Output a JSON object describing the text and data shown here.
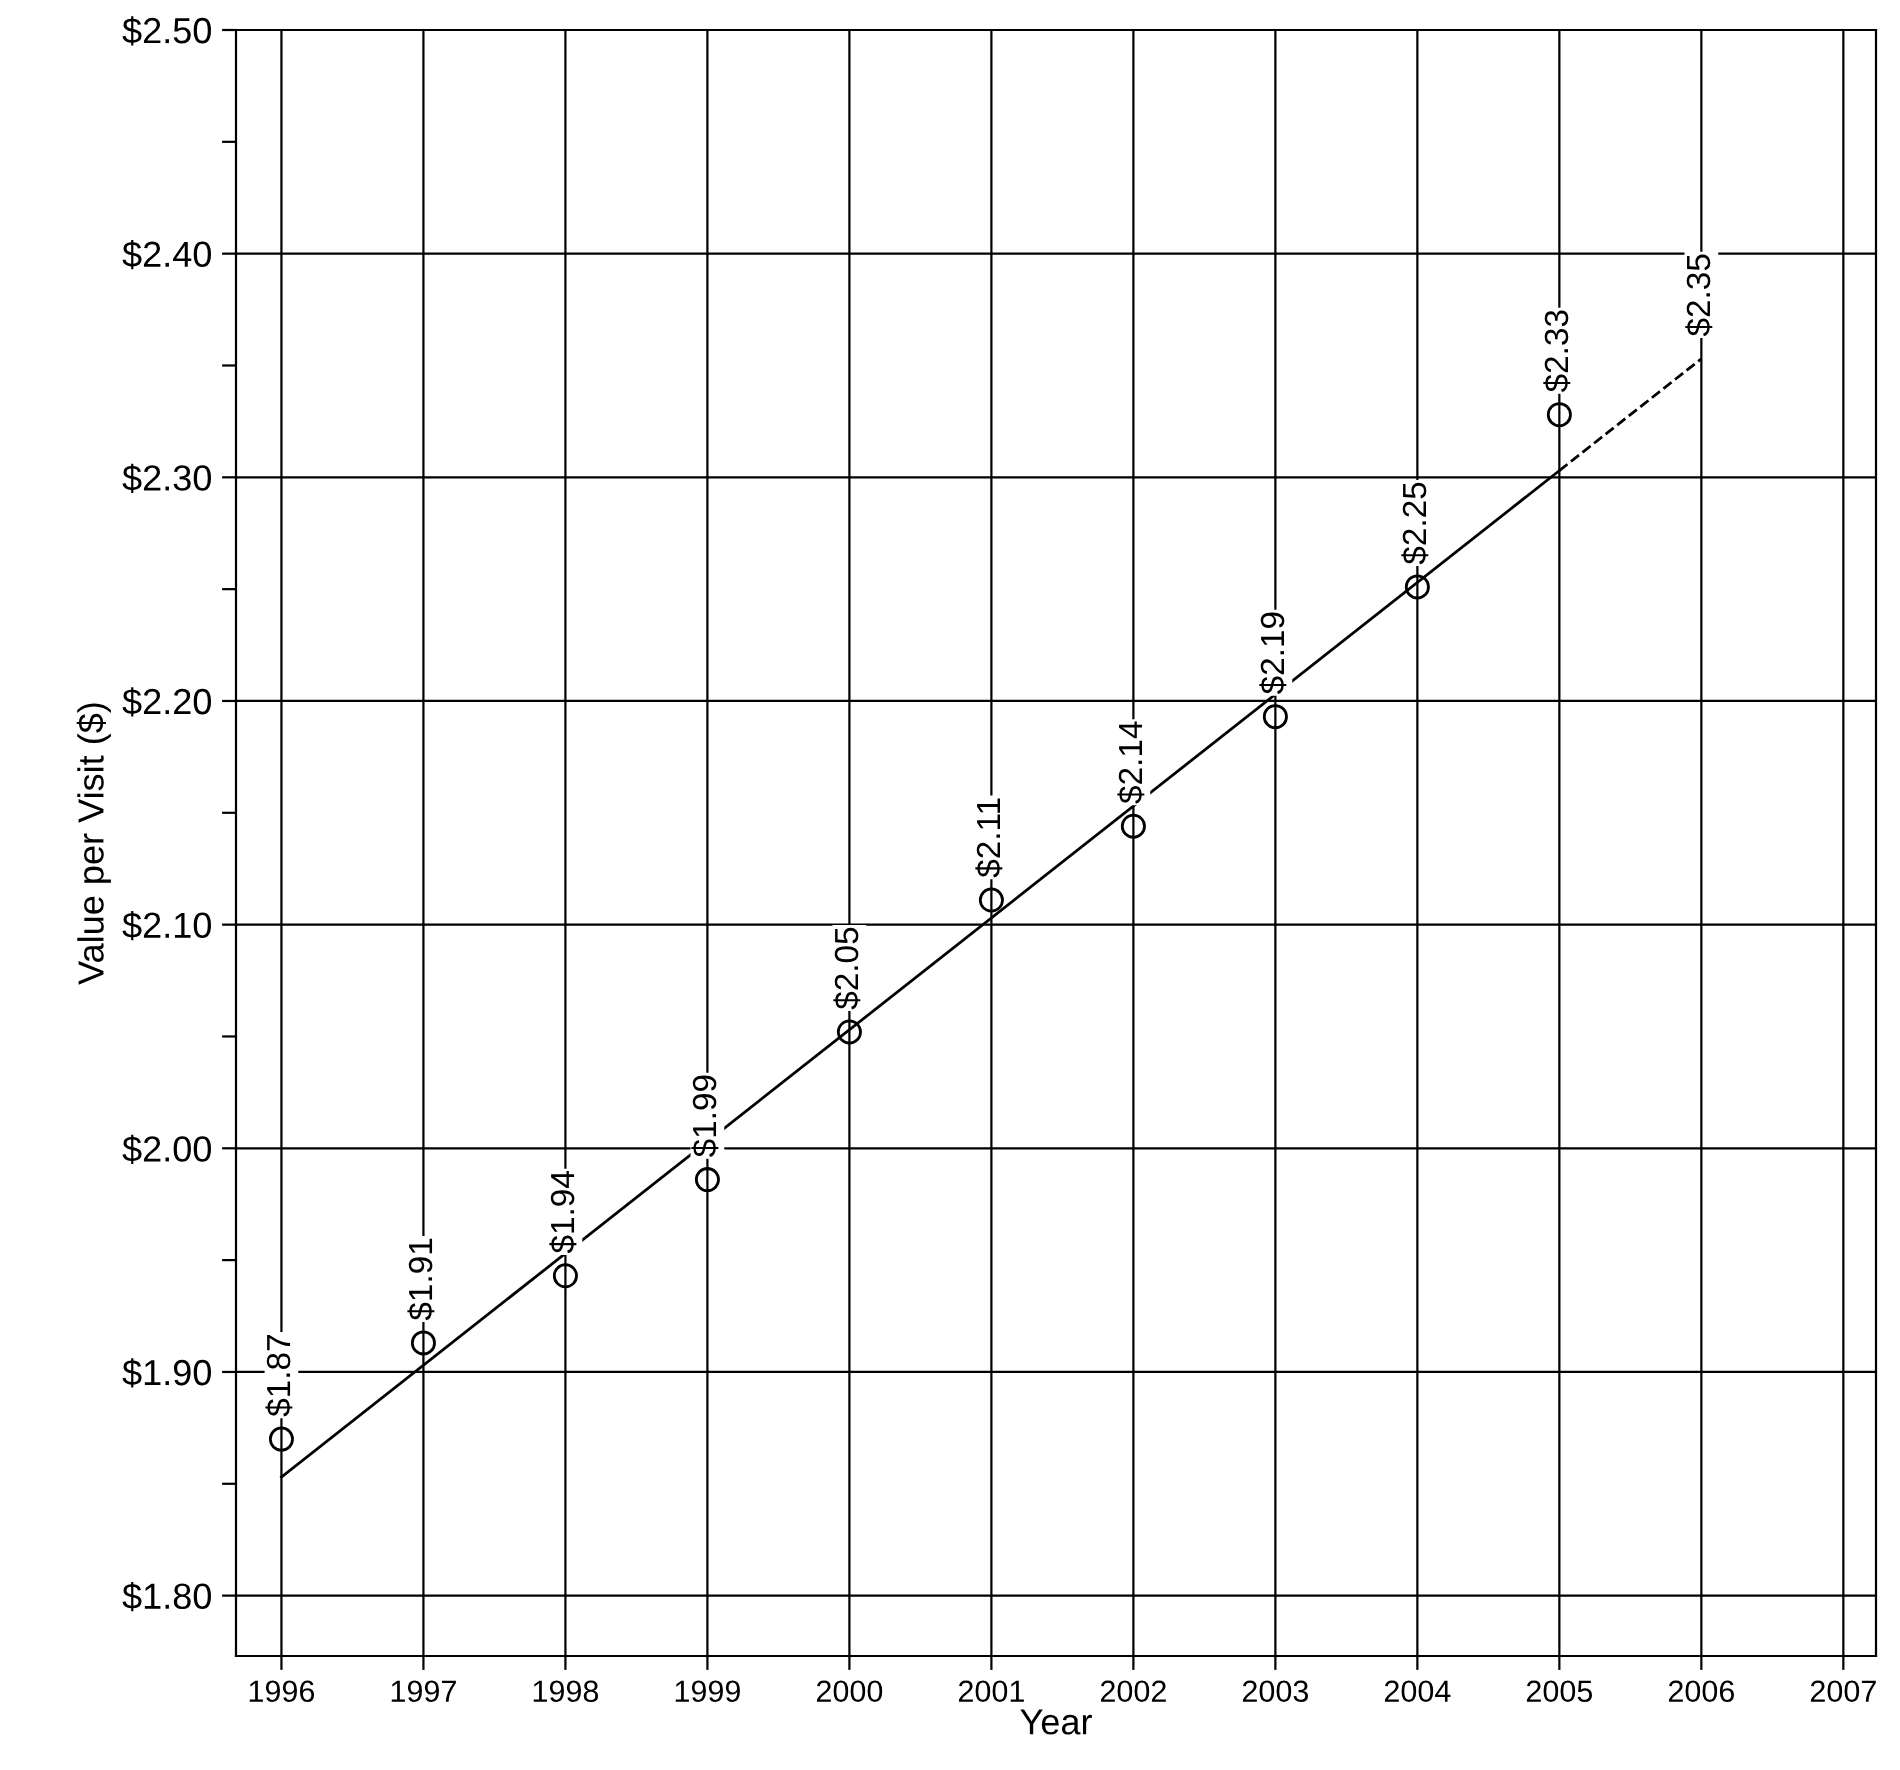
{
  "chart_data": {
    "type": "scatter",
    "xlabel": "Year",
    "ylabel": "Value per Visit ($)",
    "xlim": [
      1995.68,
      2007.23
    ],
    "xticks": [
      1996,
      1997,
      1998,
      1999,
      2000,
      2001,
      2002,
      2003,
      2004,
      2005,
      2006,
      2007
    ],
    "ylim": [
      1.773,
      2.5
    ],
    "yticks": [
      {
        "value": 1.8,
        "label": "$1.80"
      },
      {
        "value": 1.85,
        "label": null
      },
      {
        "value": 1.9,
        "label": "$1.90"
      },
      {
        "value": 1.95,
        "label": null
      },
      {
        "value": 2.0,
        "label": "$2.00"
      },
      {
        "value": 2.05,
        "label": null
      },
      {
        "value": 2.1,
        "label": "$2.10"
      },
      {
        "value": 2.15,
        "label": null
      },
      {
        "value": 2.2,
        "label": "$2.20"
      },
      {
        "value": 2.25,
        "label": null
      },
      {
        "value": 2.3,
        "label": "$2.30"
      },
      {
        "value": 2.35,
        "label": null
      },
      {
        "value": 2.4,
        "label": "$2.40"
      },
      {
        "value": 2.45,
        "label": null
      },
      {
        "value": 2.5,
        "label": "$2.50"
      }
    ],
    "grid": true,
    "legend": false,
    "series": [
      {
        "marker": "circle",
        "color": "#000000",
        "x": [
          1996,
          1997,
          1998,
          1999,
          2000,
          2001,
          2002,
          2003,
          2004,
          2005
        ],
        "values": [
          1.87,
          1.913,
          1.943,
          1.986,
          2.052,
          2.111,
          2.144,
          2.193,
          2.251,
          2.328
        ],
        "value_labels": [
          "$1.87",
          "$1.91",
          "$1.94",
          "$1.99",
          "$2.05",
          "$2.11",
          "$2.14",
          "$2.19",
          "$2.25",
          "$2.33"
        ]
      },
      {
        "type": "line",
        "line_style": "solid",
        "color": "#000000",
        "x": [
          1996,
          2005
        ],
        "values": [
          1.853,
          2.303
        ]
      },
      {
        "type": "line",
        "line_style": "dashed",
        "color": "#000000",
        "x": [
          2005,
          2006
        ],
        "values": [
          2.303,
          2.353
        ],
        "value_labels": [
          null,
          "$2.35"
        ]
      }
    ]
  }
}
